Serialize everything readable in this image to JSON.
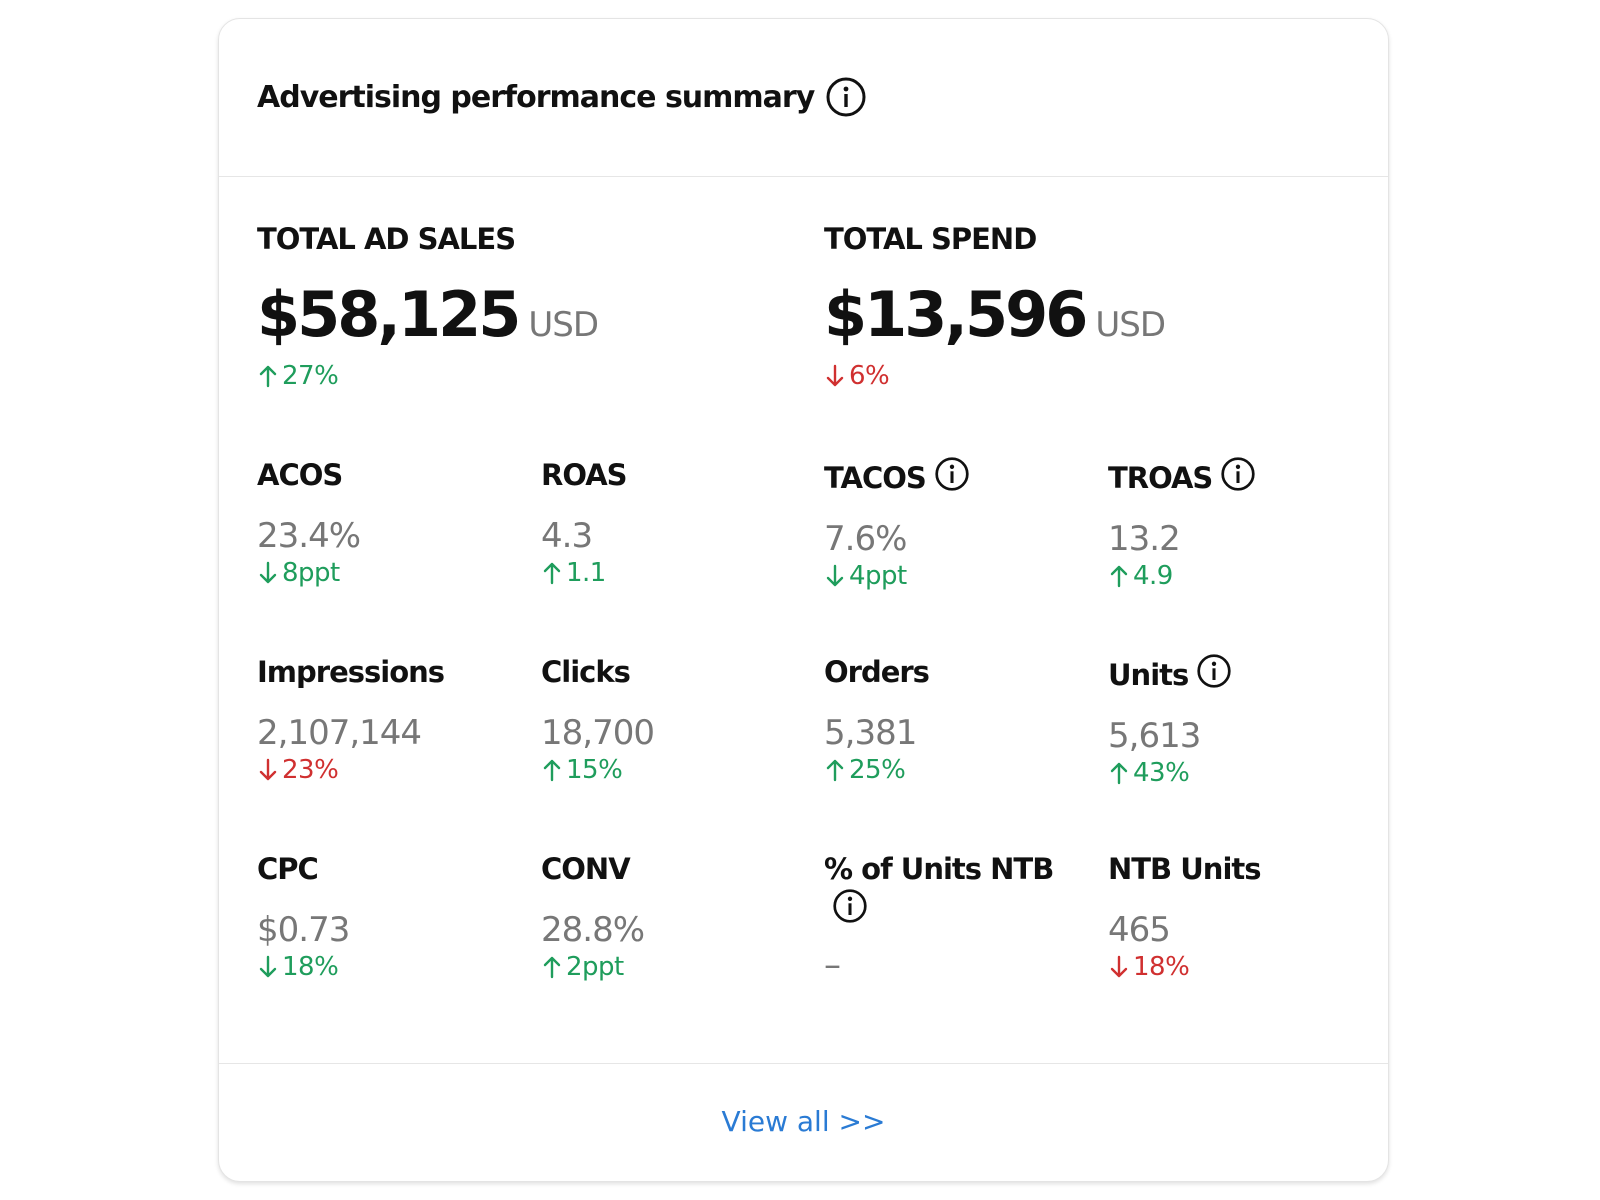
{
  "header": {
    "title": "Advertising performance summary"
  },
  "primary": [
    {
      "label": "TOTAL AD SALES",
      "value": "$58,125",
      "unit": "USD",
      "change": "27%",
      "direction": "up",
      "sentiment": "positive"
    },
    {
      "label": "TOTAL SPEND",
      "value": "$13,596",
      "unit": "USD",
      "change": "6%",
      "direction": "down",
      "sentiment": "negative"
    }
  ],
  "metrics": [
    {
      "label": "ACOS",
      "value": "23.4%",
      "change": "8ppt",
      "direction": "down",
      "sentiment": "positive",
      "info": false
    },
    {
      "label": "ROAS",
      "value": "4.3",
      "change": "1.1",
      "direction": "up",
      "sentiment": "positive",
      "info": false
    },
    {
      "label": "TACOS",
      "value": "7.6%",
      "change": "4ppt",
      "direction": "down",
      "sentiment": "positive",
      "info": true
    },
    {
      "label": "TROAS",
      "value": "13.2",
      "change": "4.9",
      "direction": "up",
      "sentiment": "positive",
      "info": true
    },
    {
      "label": "Impressions",
      "value": "2,107,144",
      "change": "23%",
      "direction": "down",
      "sentiment": "negative",
      "info": false
    },
    {
      "label": "Clicks",
      "value": "18,700",
      "change": "15%",
      "direction": "up",
      "sentiment": "positive",
      "info": false
    },
    {
      "label": "Orders",
      "value": "5,381",
      "change": "25%",
      "direction": "up",
      "sentiment": "positive",
      "info": false
    },
    {
      "label": "Units",
      "value": "5,613",
      "change": "43%",
      "direction": "up",
      "sentiment": "positive",
      "info": true
    },
    {
      "label": "CPC",
      "value": "$0.73",
      "change": "18%",
      "direction": "down",
      "sentiment": "positive",
      "info": false
    },
    {
      "label": "CONV",
      "value": "28.8%",
      "change": "2ppt",
      "direction": "up",
      "sentiment": "positive",
      "info": false
    },
    {
      "label": "% of Units NTB",
      "value": "–",
      "info": true
    },
    {
      "label": "NTB Units",
      "value": "465",
      "change": "18%",
      "direction": "down",
      "sentiment": "negative",
      "info": false
    }
  ],
  "footer": {
    "link": "View all >>"
  }
}
